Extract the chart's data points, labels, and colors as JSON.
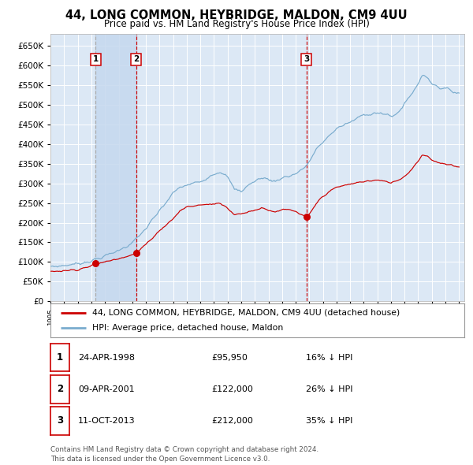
{
  "title": "44, LONG COMMON, HEYBRIDGE, MALDON, CM9 4UU",
  "subtitle": "Price paid vs. HM Land Registry's House Price Index (HPI)",
  "background_color": "#ffffff",
  "plot_bg_color": "#dce8f5",
  "grid_color": "#ffffff",
  "hpi_line_color": "#7aacce",
  "price_line_color": "#cc0000",
  "sale_marker_color": "#cc0000",
  "purchases": [
    {
      "label": "1",
      "date_num": 1998.31,
      "price": 95950,
      "vline_color": "#aaaaaa",
      "vline_style": "dashed"
    },
    {
      "label": "2",
      "date_num": 2001.28,
      "price": 122000,
      "vline_color": "#cc0000",
      "vline_style": "dashed"
    },
    {
      "label": "3",
      "date_num": 2013.79,
      "price": 212000,
      "vline_color": "#cc0000",
      "vline_style": "dashed"
    }
  ],
  "table_entries": [
    {
      "num": "1",
      "date": "24-APR-1998",
      "price": "£95,950",
      "hpi": "16% ↓ HPI"
    },
    {
      "num": "2",
      "date": "09-APR-2001",
      "price": "£122,000",
      "hpi": "26% ↓ HPI"
    },
    {
      "num": "3",
      "date": "11-OCT-2013",
      "price": "£212,000",
      "hpi": "35% ↓ HPI"
    }
  ],
  "legend_entries": [
    "44, LONG COMMON, HEYBRIDGE, MALDON, CM9 4UU (detached house)",
    "HPI: Average price, detached house, Maldon"
  ],
  "footer": "Contains HM Land Registry data © Crown copyright and database right 2024.\nThis data is licensed under the Open Government Licence v3.0.",
  "ylim": [
    0,
    680000
  ],
  "yticks": [
    0,
    50000,
    100000,
    150000,
    200000,
    250000,
    300000,
    350000,
    400000,
    450000,
    500000,
    550000,
    600000,
    650000
  ],
  "xmin": 1995.4,
  "xmax": 2025.4,
  "hpi_anchors_t": [
    1995.0,
    1996.0,
    1997.0,
    1998.0,
    1999.0,
    2000.0,
    2001.0,
    2002.0,
    2003.0,
    2004.0,
    2004.5,
    2005.0,
    2006.0,
    2007.0,
    2007.5,
    2008.0,
    2008.5,
    2009.0,
    2009.5,
    2010.0,
    2010.5,
    2011.0,
    2011.5,
    2012.0,
    2012.5,
    2013.0,
    2013.5,
    2014.0,
    2014.5,
    2015.0,
    2016.0,
    2017.0,
    2018.0,
    2019.0,
    2020.0,
    2020.5,
    2021.0,
    2021.5,
    2022.0,
    2022.3,
    2022.7,
    2023.0,
    2023.5,
    2024.0,
    2024.5,
    2025.0
  ],
  "hpi_anchors_v": [
    88000,
    91000,
    96000,
    103000,
    115000,
    130000,
    148000,
    185000,
    230000,
    275000,
    290000,
    295000,
    305000,
    325000,
    330000,
    315000,
    285000,
    280000,
    295000,
    305000,
    315000,
    310000,
    305000,
    315000,
    318000,
    325000,
    335000,
    355000,
    385000,
    405000,
    440000,
    455000,
    475000,
    480000,
    470000,
    478000,
    505000,
    525000,
    555000,
    575000,
    570000,
    555000,
    545000,
    540000,
    535000,
    530000
  ],
  "price_anchors_t": [
    1995.0,
    1996.0,
    1997.0,
    1998.0,
    1998.31,
    1999.0,
    2000.0,
    2001.0,
    2001.28,
    2002.0,
    2003.0,
    2004.0,
    2004.5,
    2005.0,
    2006.0,
    2007.0,
    2007.5,
    2008.0,
    2008.5,
    2009.0,
    2009.5,
    2010.0,
    2010.5,
    2011.0,
    2011.5,
    2012.0,
    2012.5,
    2013.0,
    2013.79,
    2014.0,
    2014.5,
    2015.0,
    2016.0,
    2017.0,
    2018.0,
    2019.0,
    2020.0,
    2020.5,
    2021.0,
    2021.5,
    2022.0,
    2022.3,
    2022.7,
    2023.0,
    2023.5,
    2024.0,
    2024.5,
    2025.0
  ],
  "price_anchors_v": [
    76000,
    78000,
    81000,
    90000,
    95950,
    100000,
    110000,
    118000,
    122000,
    145000,
    180000,
    210000,
    230000,
    240000,
    245000,
    248000,
    250000,
    238000,
    220000,
    222000,
    228000,
    232000,
    238000,
    232000,
    228000,
    232000,
    233000,
    228000,
    212000,
    220000,
    248000,
    268000,
    290000,
    298000,
    305000,
    308000,
    302000,
    308000,
    318000,
    335000,
    358000,
    372000,
    370000,
    360000,
    352000,
    348000,
    345000,
    342000
  ]
}
